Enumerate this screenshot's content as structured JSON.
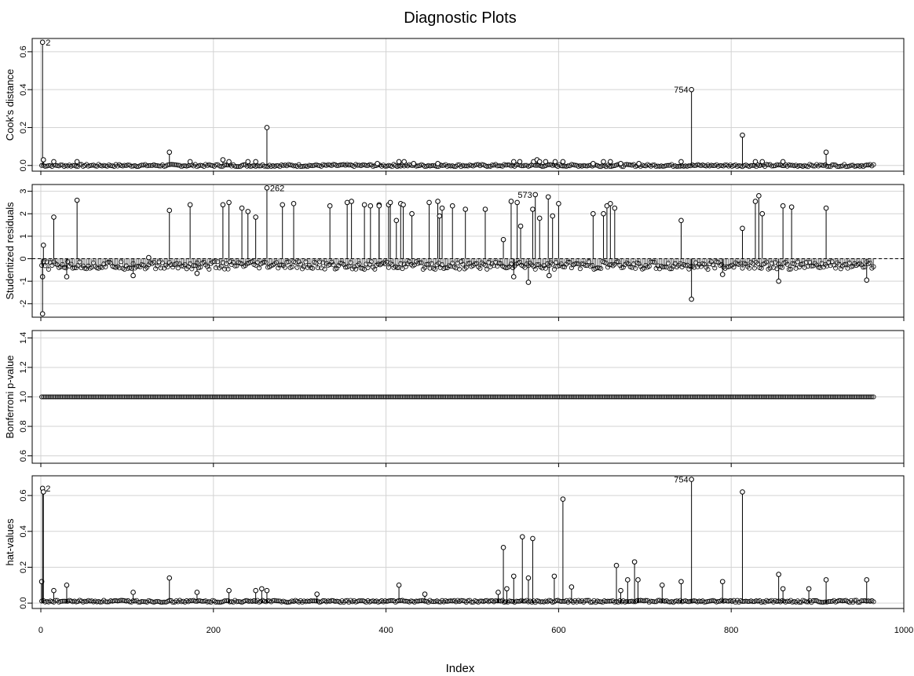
{
  "title": "Diagnostic Plots",
  "xlabel": "Index",
  "x_ticks": [
    "0",
    "200",
    "400",
    "600",
    "800",
    "1000"
  ],
  "chart_data": [
    {
      "type": "scatter",
      "style": "spikes",
      "ylabel": "Cook's distance",
      "xlim": [
        -10,
        1000
      ],
      "ylim": [
        -0.03,
        0.67
      ],
      "y_ticks": [
        "0.0",
        "0.2",
        "0.4",
        "0.6"
      ],
      "y_tick_values": [
        0.0,
        0.2,
        0.4,
        0.6
      ],
      "grid": true,
      "reference_line": null,
      "baseline": 0.0,
      "background_level": 0.0,
      "n": 966,
      "spikes": [
        [
          2,
          0.65
        ],
        [
          3,
          0.03
        ],
        [
          15,
          0.02
        ],
        [
          42,
          0.02
        ],
        [
          149,
          0.07
        ],
        [
          173,
          0.02
        ],
        [
          211,
          0.03
        ],
        [
          218,
          0.02
        ],
        [
          240,
          0.02
        ],
        [
          249,
          0.02
        ],
        [
          262,
          0.2
        ],
        [
          390,
          0.01
        ],
        [
          415,
          0.02
        ],
        [
          421,
          0.02
        ],
        [
          432,
          0.01
        ],
        [
          460,
          0.01
        ],
        [
          548,
          0.02
        ],
        [
          555,
          0.02
        ],
        [
          571,
          0.02
        ],
        [
          575,
          0.03
        ],
        [
          578,
          0.02
        ],
        [
          585,
          0.02
        ],
        [
          596,
          0.02
        ],
        [
          605,
          0.02
        ],
        [
          640,
          0.01
        ],
        [
          652,
          0.02
        ],
        [
          660,
          0.02
        ],
        [
          672,
          0.01
        ],
        [
          693,
          0.01
        ],
        [
          742,
          0.02
        ],
        [
          754,
          0.4
        ],
        [
          813,
          0.16
        ],
        [
          828,
          0.02
        ],
        [
          836,
          0.02
        ],
        [
          860,
          0.02
        ],
        [
          910,
          0.07
        ]
      ],
      "labels": [
        {
          "x": 2,
          "y": 0.65,
          "text": "2",
          "anchor": "right"
        },
        {
          "x": 754,
          "y": 0.4,
          "text": "754",
          "anchor": "left"
        }
      ]
    },
    {
      "type": "scatter",
      "style": "spikes",
      "ylabel": "Studentized residuals",
      "xlim": [
        -10,
        1000
      ],
      "ylim": [
        -2.6,
        3.3
      ],
      "y_ticks": [
        "-2",
        "-1",
        "0",
        "1",
        "2",
        "3"
      ],
      "y_tick_values": [
        -2,
        -1,
        0,
        1,
        2,
        3
      ],
      "grid": true,
      "reference_line": 0,
      "baseline": 0.0,
      "background_level": -0.3,
      "n": 966,
      "spikes": [
        [
          2,
          -0.8
        ],
        [
          2,
          -2.45
        ],
        [
          3,
          0.6
        ],
        [
          15,
          1.85
        ],
        [
          30,
          -0.8
        ],
        [
          42,
          2.6
        ],
        [
          107,
          -0.75
        ],
        [
          125,
          0.05
        ],
        [
          149,
          2.15
        ],
        [
          173,
          2.4
        ],
        [
          181,
          -0.65
        ],
        [
          211,
          2.4
        ],
        [
          218,
          2.5
        ],
        [
          233,
          2.25
        ],
        [
          240,
          2.1
        ],
        [
          249,
          1.85
        ],
        [
          262,
          3.15
        ],
        [
          280,
          2.4
        ],
        [
          293,
          2.45
        ],
        [
          335,
          2.35
        ],
        [
          355,
          2.5
        ],
        [
          360,
          2.55
        ],
        [
          375,
          2.4
        ],
        [
          382,
          2.35
        ],
        [
          392,
          2.4
        ],
        [
          392,
          2.35
        ],
        [
          403,
          2.4
        ],
        [
          405,
          2.5
        ],
        [
          412,
          1.7
        ],
        [
          417,
          2.45
        ],
        [
          420,
          2.4
        ],
        [
          430,
          2.0
        ],
        [
          450,
          2.5
        ],
        [
          460,
          2.55
        ],
        [
          462,
          1.9
        ],
        [
          465,
          2.25
        ],
        [
          477,
          2.35
        ],
        [
          492,
          2.2
        ],
        [
          515,
          2.2
        ],
        [
          536,
          0.85
        ],
        [
          545,
          2.55
        ],
        [
          548,
          -0.8
        ],
        [
          552,
          2.5
        ],
        [
          556,
          1.45
        ],
        [
          565,
          -1.05
        ],
        [
          570,
          2.2
        ],
        [
          573,
          2.85
        ],
        [
          578,
          1.8
        ],
        [
          588,
          2.75
        ],
        [
          589,
          -0.75
        ],
        [
          593,
          1.9
        ],
        [
          600,
          2.45
        ],
        [
          640,
          2.0
        ],
        [
          652,
          2.0
        ],
        [
          656,
          2.35
        ],
        [
          660,
          2.45
        ],
        [
          665,
          2.25
        ],
        [
          742,
          1.7
        ],
        [
          754,
          -1.8
        ],
        [
          790,
          -0.7
        ],
        [
          813,
          1.35
        ],
        [
          828,
          2.55
        ],
        [
          832,
          2.8
        ],
        [
          836,
          2.0
        ],
        [
          860,
          2.35
        ],
        [
          870,
          2.3
        ],
        [
          910,
          2.25
        ],
        [
          855,
          -1.0
        ],
        [
          957,
          -0.95
        ]
      ],
      "labels": [
        {
          "x": 262,
          "y": 3.15,
          "text": "262",
          "anchor": "right"
        },
        {
          "x": 573,
          "y": 2.85,
          "text": "573",
          "anchor": "left"
        }
      ]
    },
    {
      "type": "scatter",
      "style": "points",
      "ylabel": "Bonferroni p-value",
      "xlim": [
        -10,
        1000
      ],
      "ylim": [
        0.55,
        1.45
      ],
      "y_ticks": [
        "0.6",
        "0.8",
        "1.0",
        "1.2",
        "1.4"
      ],
      "y_tick_values": [
        0.6,
        0.8,
        1.0,
        1.2,
        1.4
      ],
      "grid": true,
      "reference_line": null,
      "baseline": null,
      "background_level": 1.0,
      "n": 966,
      "spikes": [],
      "labels": []
    },
    {
      "type": "scatter",
      "style": "spikes",
      "ylabel": "hat-values",
      "xlim": [
        -10,
        1000
      ],
      "ylim": [
        -0.03,
        0.71
      ],
      "y_ticks": [
        "0.0",
        "0.2",
        "0.4",
        "0.6"
      ],
      "y_tick_values": [
        0.0,
        0.2,
        0.4,
        0.6
      ],
      "grid": true,
      "reference_line": null,
      "baseline": 0.0,
      "background_level": 0.01,
      "n": 966,
      "spikes": [
        [
          1,
          0.12
        ],
        [
          2,
          0.64
        ],
        [
          3,
          0.62
        ],
        [
          15,
          0.07
        ],
        [
          30,
          0.1
        ],
        [
          107,
          0.06
        ],
        [
          149,
          0.14
        ],
        [
          181,
          0.06
        ],
        [
          218,
          0.07
        ],
        [
          249,
          0.07
        ],
        [
          256,
          0.08
        ],
        [
          262,
          0.07
        ],
        [
          320,
          0.05
        ],
        [
          415,
          0.1
        ],
        [
          445,
          0.05
        ],
        [
          530,
          0.06
        ],
        [
          536,
          0.31
        ],
        [
          540,
          0.08
        ],
        [
          548,
          0.15
        ],
        [
          558,
          0.37
        ],
        [
          565,
          0.14
        ],
        [
          570,
          0.36
        ],
        [
          595,
          0.15
        ],
        [
          605,
          0.58
        ],
        [
          615,
          0.09
        ],
        [
          667,
          0.21
        ],
        [
          672,
          0.07
        ],
        [
          680,
          0.13
        ],
        [
          688,
          0.23
        ],
        [
          692,
          0.13
        ],
        [
          720,
          0.1
        ],
        [
          742,
          0.12
        ],
        [
          754,
          0.69
        ],
        [
          790,
          0.12
        ],
        [
          813,
          0.62
        ],
        [
          855,
          0.16
        ],
        [
          860,
          0.08
        ],
        [
          890,
          0.08
        ],
        [
          910,
          0.13
        ],
        [
          957,
          0.13
        ]
      ],
      "labels": [
        {
          "x": 2,
          "y": 0.64,
          "text": "2",
          "anchor": "right"
        },
        {
          "x": 754,
          "y": 0.69,
          "text": "754",
          "anchor": "left"
        }
      ]
    }
  ]
}
